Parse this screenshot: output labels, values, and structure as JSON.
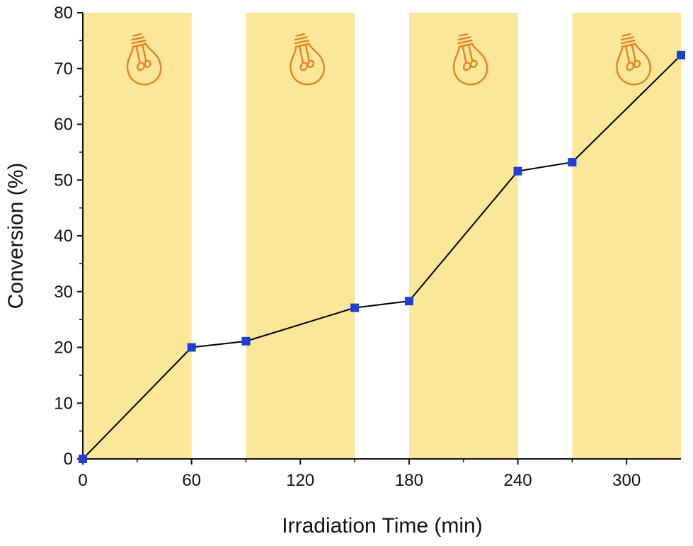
{
  "chart_data": {
    "type": "line",
    "xlabel": "Irradiation Time (min)",
    "ylabel": "Conversion (%)",
    "xlim": [
      0,
      330
    ],
    "ylim": [
      0,
      80
    ],
    "xticks": [
      0,
      60,
      120,
      180,
      240,
      300
    ],
    "yticks": [
      0,
      10,
      20,
      30,
      40,
      50,
      60,
      70,
      80
    ],
    "grid": false,
    "light_on_intervals": [
      [
        0,
        60
      ],
      [
        90,
        150
      ],
      [
        180,
        240
      ],
      [
        270,
        330
      ]
    ],
    "light_icon": "light-bulb-icon",
    "series": [
      {
        "x": [
          0,
          60,
          90,
          150,
          180,
          240,
          270,
          330
        ],
        "y": [
          0,
          20.0,
          21.1,
          27.1,
          28.3,
          51.6,
          53.2,
          72.4
        ],
        "marker": "square",
        "marker_color": "#1f3ed6",
        "line_color": "#000000"
      }
    ],
    "colors": {
      "shade": "#fbe79a",
      "bulb": "#e8821e",
      "axis": "#111111"
    }
  }
}
